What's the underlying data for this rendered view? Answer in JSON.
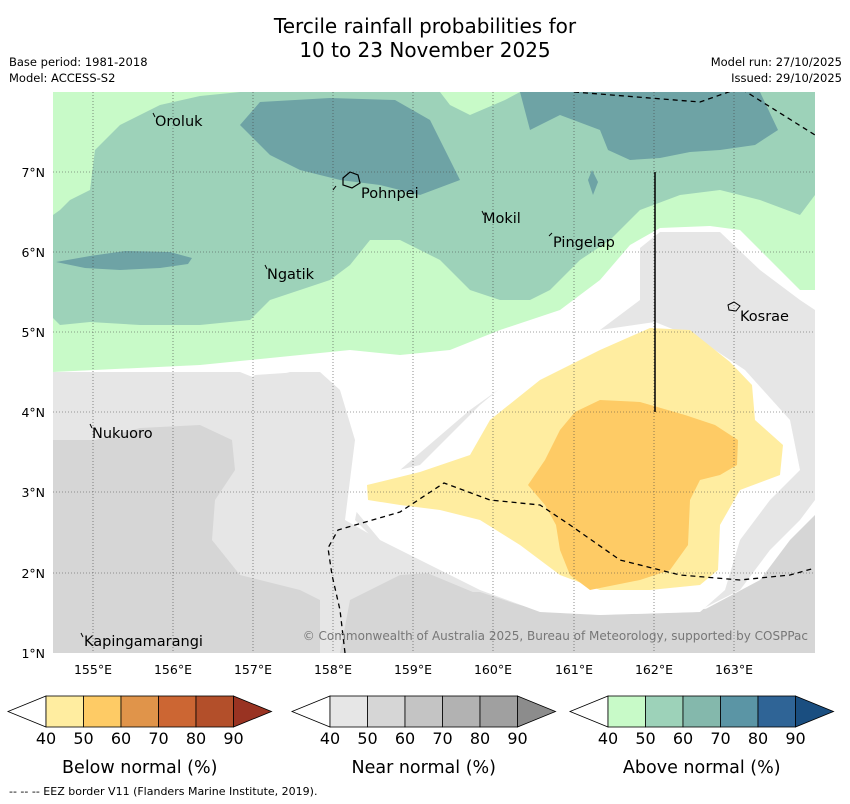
{
  "title_line1": "Tercile rainfall probabilities for",
  "title_line2": "10 to 23 November 2025",
  "base_period": "Base period: 1981-2018",
  "model": "Model: ACCESS-S2",
  "model_run": "Model run: 27/10/2025",
  "issued": "Issued: 29/10/2025",
  "lat_labels": [
    "7°N",
    "6°N",
    "5°N",
    "4°N",
    "3°N",
    "2°N",
    "1°N"
  ],
  "lon_labels": [
    "155°E",
    "156°E",
    "157°E",
    "158°E",
    "159°E",
    "160°E",
    "161°E",
    "162°E",
    "163°E"
  ],
  "places": {
    "oroluk": "Oroluk",
    "pohnpei": "Pohnpei",
    "mokil": "Mokil",
    "pingelap": "Pingelap",
    "ngatik": "Ngatik",
    "kosrae": "Kosrae",
    "nukuoro": "Nukuoro",
    "kapingamarangi": "Kapingamarangi"
  },
  "copyright": "© Commonwealth of Australia 2025, Bureau of Meteorology, supported by COSPPac",
  "colorbars": [
    {
      "title": "Below normal (%)",
      "ticks": [
        "40",
        "50",
        "60",
        "70",
        "80",
        "90"
      ],
      "colors": [
        "#ffffff",
        "#ffeda0",
        "#fecb65",
        "#e0944a",
        "#cc6633",
        "#b34f2a",
        "#993322"
      ]
    },
    {
      "title": "Near normal (%)",
      "ticks": [
        "40",
        "50",
        "60",
        "70",
        "80",
        "90"
      ],
      "colors": [
        "#ffffff",
        "#e6e6e6",
        "#d6d6d6",
        "#c4c4c4",
        "#b2b2b2",
        "#a0a0a0",
        "#8c8c8c"
      ]
    },
    {
      "title": "Above normal (%)",
      "ticks": [
        "40",
        "50",
        "60",
        "70",
        "80",
        "90"
      ],
      "colors": [
        "#ffffff",
        "#c8fac8",
        "#9dd2b9",
        "#84b8ac",
        "#5b95a5",
        "#2f6496",
        "#1a4e80"
      ]
    }
  ],
  "footer": "--  --  -- EEZ border V11 (Flanders Marine Institute, 2019)."
}
